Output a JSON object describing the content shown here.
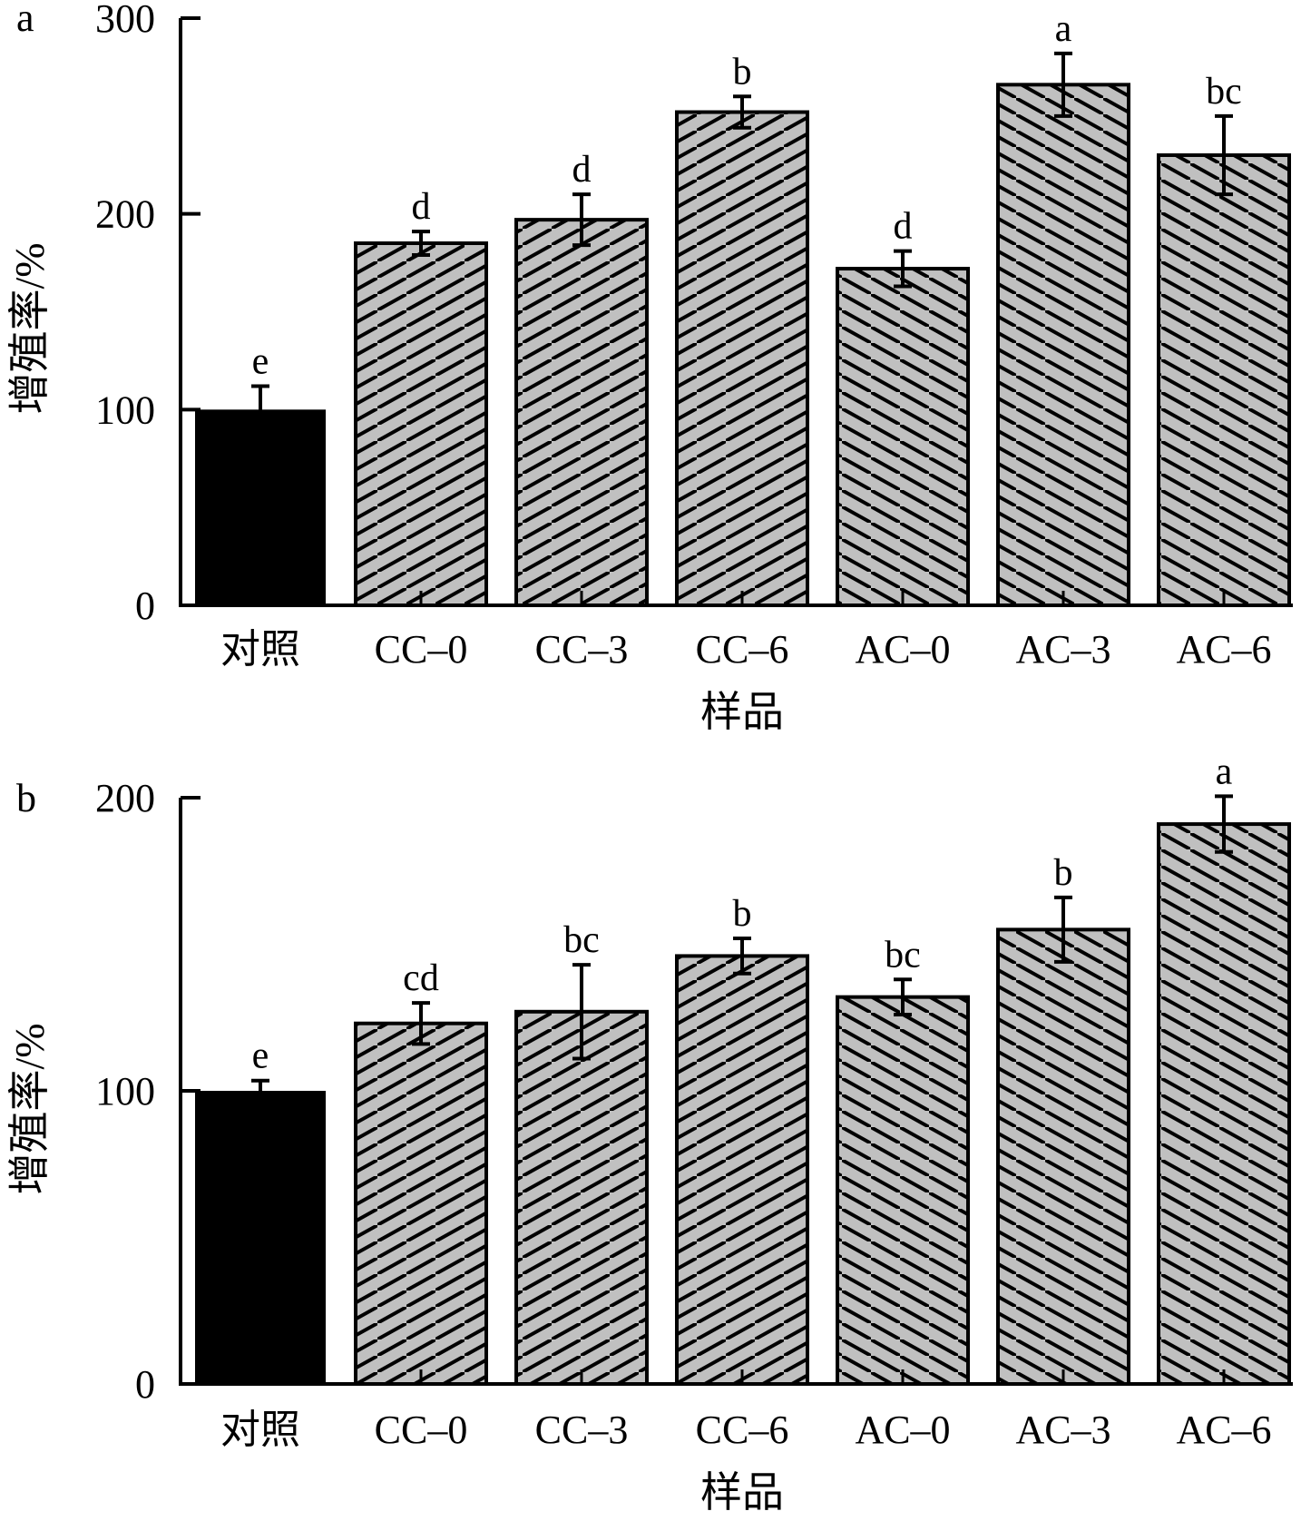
{
  "chart_data": [
    {
      "type": "bar",
      "panel": "a",
      "title": "",
      "xlabel": "样品",
      "ylabel": "增殖率/%",
      "ylim": [
        0,
        300
      ],
      "yticks": [
        0,
        100,
        200,
        300
      ],
      "grid": false,
      "categories": [
        "对照",
        "CC–0",
        "CC–3",
        "CC–6",
        "AC–0",
        "AC–3",
        "AC–6"
      ],
      "values": [
        100,
        185,
        197,
        252,
        172,
        266,
        230
      ],
      "errors": [
        12,
        6,
        13,
        8,
        9,
        16,
        20
      ],
      "significance": [
        "e",
        "d",
        "d",
        "b",
        "d",
        "a",
        "bc"
      ],
      "fills": [
        "solid",
        "hatch-up",
        "hatch-up",
        "hatch-up",
        "hatch-down",
        "hatch-down",
        "hatch-down"
      ]
    },
    {
      "type": "bar",
      "panel": "b",
      "title": "",
      "xlabel": "样品",
      "ylabel": "增殖率/%",
      "ylim": [
        0,
        200
      ],
      "yticks": [
        0,
        100,
        200
      ],
      "grid": false,
      "categories": [
        "对照",
        "CC–0",
        "CC–3",
        "CC–6",
        "AC–0",
        "AC–3",
        "AC–6"
      ],
      "values": [
        100,
        123,
        127,
        146,
        132,
        155,
        191
      ],
      "errors": [
        3.5,
        7,
        16,
        6,
        6,
        11,
        9.5
      ],
      "significance": [
        "e",
        "cd",
        "bc",
        "b",
        "bc",
        "b",
        "a"
      ],
      "fills": [
        "solid",
        "hatch-up",
        "hatch-up",
        "hatch-up",
        "hatch-down",
        "hatch-down",
        "hatch-down"
      ]
    }
  ],
  "colors": {
    "control": "#000000",
    "hatch_fill": "#c0c0c0",
    "hatch_line": "#000000",
    "axis": "#000000"
  }
}
